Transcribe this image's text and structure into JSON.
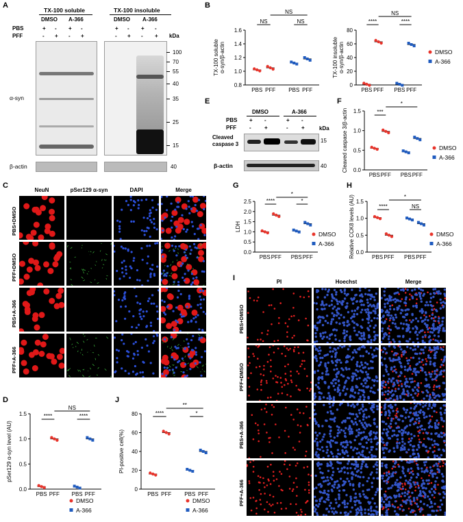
{
  "panels": {
    "a": "A",
    "b": "B",
    "c": "C",
    "d": "D",
    "e": "E",
    "f": "F",
    "g": "G",
    "h": "H",
    "i": "I",
    "j": "J"
  },
  "panelA": {
    "soluble_title": "TX-100 soluble",
    "insoluble_title": "TX-100 insoluble",
    "dmso": "DMSO",
    "a366": "A-366",
    "pbs": "PBS",
    "pff": "PFF",
    "plus": "+",
    "minus": "-",
    "kda": "kDa",
    "markers": [
      "100",
      "70",
      "55",
      "40",
      "35",
      "25",
      "15"
    ],
    "asyn": "α-syn",
    "bactin": "β-actin",
    "actin_marker": "40"
  },
  "panelE": {
    "dmso": "DMSO",
    "a366": "A-366",
    "pbs": "PBS",
    "pff": "PFF",
    "cleaved": "Cleaved",
    "caspase": "caspase 3",
    "bactin": "β-actin",
    "kda": "kDa",
    "m15": "15",
    "m40": "40",
    "plus": "+",
    "minus": "-"
  },
  "panelC": {
    "headers": [
      "NeuN",
      "pSer129 α-syn",
      "DAPI",
      "Merge"
    ],
    "rows": [
      "PBS+DMSO",
      "PFF+DMSO",
      "PBS+A-366",
      "PFF+A-366"
    ]
  },
  "panelI": {
    "headers": [
      "PI",
      "Hoechst",
      "Merge"
    ],
    "rows": [
      "PBS+DMSO",
      "PFF+DMSO",
      "PBS+A-366",
      "PFF+A-366"
    ]
  },
  "legend": {
    "dmso": "DMSO",
    "a366": "A-366"
  },
  "colors": {
    "dmso": "#e8332a",
    "a366": "#1f5bbf"
  },
  "chart_data": [
    {
      "id": "B1",
      "type": "scatter",
      "ylabel": "TX-100 soluble α-syn/β-actin",
      "ylim": [
        0.8,
        1.6
      ],
      "yticks": [
        "0.8",
        "1.0",
        "1.2",
        "1.4",
        "1.6"
      ],
      "categories": [
        "PBS",
        "PFF",
        "PBS",
        "PFF"
      ],
      "series": [
        {
          "name": "DMSO",
          "values": [
            1.02,
            1.05
          ]
        },
        {
          "name": "A-366",
          "values": [
            1.12,
            1.18
          ]
        }
      ],
      "annotations": [
        "NS",
        "NS",
        "NS"
      ]
    },
    {
      "id": "B2",
      "type": "scatter",
      "ylabel": "TX-100 insoluble α-syn/β-actin",
      "ylim": [
        0,
        80
      ],
      "yticks": [
        "0",
        "20",
        "40",
        "60",
        "80"
      ],
      "categories": [
        "PBS",
        "PFF",
        "PBS",
        "PFF"
      ],
      "series": [
        {
          "name": "DMSO",
          "values": [
            1,
            63
          ]
        },
        {
          "name": "A-366",
          "values": [
            1,
            59
          ]
        }
      ],
      "annotations": [
        "****",
        "NS",
        "****"
      ]
    },
    {
      "id": "D",
      "type": "scatter",
      "ylabel": "pSer129 α-syn level (AU)",
      "ylim": [
        0,
        1.5
      ],
      "yticks": [
        "0.0",
        "0.5",
        "1.0",
        "1.5"
      ],
      "categories": [
        "PBS",
        "PFF",
        "PBS",
        "PFF"
      ],
      "series": [
        {
          "name": "DMSO",
          "values": [
            0.05,
            1.0
          ]
        },
        {
          "name": "A-366",
          "values": [
            0.04,
            1.0
          ]
        }
      ],
      "annotations": [
        "****",
        "NS",
        "****"
      ]
    },
    {
      "id": "F",
      "type": "scatter",
      "ylabel": "Cleaved caspase 3/β-actin",
      "ylim": [
        0,
        1.5
      ],
      "yticks": [
        "0.0",
        "0.5",
        "1.0",
        "1.5"
      ],
      "categories": [
        "PBS",
        "PFF",
        "PBS",
        "PFF"
      ],
      "series": [
        {
          "name": "DMSO",
          "values": [
            0.55,
            0.98
          ]
        },
        {
          "name": "A-366",
          "values": [
            0.46,
            0.8
          ]
        }
      ],
      "annotations": [
        "***",
        "*"
      ]
    },
    {
      "id": "G",
      "type": "scatter",
      "ylabel": "LDH",
      "ylim": [
        0,
        2.5
      ],
      "yticks": [
        "0.0",
        "0.5",
        "1.0",
        "1.5",
        "2.0",
        "2.5"
      ],
      "categories": [
        "PBS",
        "PFF",
        "PBS",
        "PFF"
      ],
      "series": [
        {
          "name": "DMSO",
          "values": [
            1.0,
            1.82
          ]
        },
        {
          "name": "A-366",
          "values": [
            1.04,
            1.4
          ]
        }
      ],
      "annotations": [
        "****",
        "*",
        "*"
      ]
    },
    {
      "id": "H",
      "type": "scatter",
      "ylabel": "Relative CCK8 levels (AU)",
      "ylim": [
        0,
        1.5
      ],
      "yticks": [
        "0.0",
        "0.5",
        "1.0",
        "1.5"
      ],
      "categories": [
        "PBS",
        "PFF",
        "PBS",
        "PFF"
      ],
      "series": [
        {
          "name": "DMSO",
          "values": [
            1.02,
            0.5
          ]
        },
        {
          "name": "A-366",
          "values": [
            0.98,
            0.84
          ]
        }
      ],
      "annotations": [
        "****",
        "*",
        "NS"
      ]
    },
    {
      "id": "J",
      "type": "scatter",
      "ylabel": "PI-positive cell(%)",
      "ylim": [
        0,
        80
      ],
      "yticks": [
        "0",
        "20",
        "40",
        "60",
        "80"
      ],
      "categories": [
        "PBS",
        "PFF",
        "PBS",
        "PFF"
      ],
      "series": [
        {
          "name": "DMSO",
          "values": [
            16,
            60
          ]
        },
        {
          "name": "A-366",
          "values": [
            20,
            40
          ]
        }
      ],
      "annotations": [
        "****",
        "**",
        "*"
      ]
    }
  ]
}
